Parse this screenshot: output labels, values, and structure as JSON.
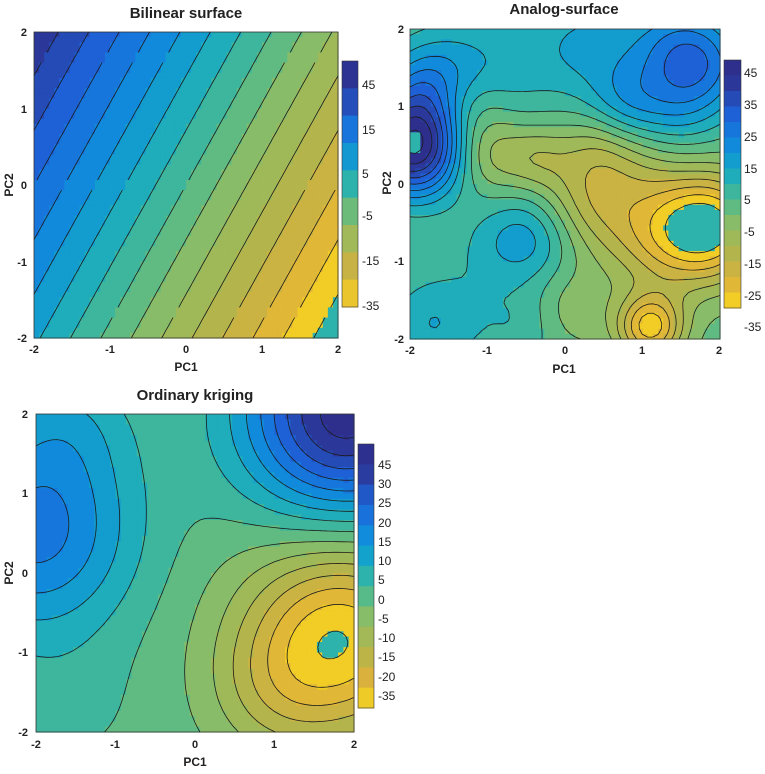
{
  "chart_data": [
    {
      "type": "heatmap",
      "plot_style": "filled contour",
      "title": "Bilinear surface",
      "xlabel": "PC1",
      "ylabel": "PC2",
      "xlim": [
        -2,
        2
      ],
      "ylim": [
        -2,
        2
      ],
      "xticks": [
        "-2",
        "-1",
        "0",
        "1",
        "2"
      ],
      "yticks": [
        "-2",
        "-1",
        "0",
        "1",
        "2"
      ],
      "colorbar_labels": [
        "45",
        "15",
        "5",
        "-5",
        "-15",
        "-35"
      ],
      "colorbar_levels": 9,
      "colorbar_colors": [
        "#f9d81e",
        "#dcb13c",
        "#b2b54d",
        "#8fbc64",
        "#48ba92",
        "#14a9c6",
        "#1187de",
        "#1e62d8",
        "#2a3b9e",
        "#302a87"
      ],
      "model": {
        "form": "bilinear",
        "params": [
          0,
          -12.5,
          7,
          0
        ],
        "range": [
          -35,
          45
        ],
        "colormap": "parula"
      },
      "contour_levels": [
        -35,
        -30,
        -25,
        -20,
        -15,
        -10,
        -5,
        0,
        5,
        10,
        15,
        20,
        25,
        30,
        35,
        40,
        45
      ]
    },
    {
      "type": "heatmap",
      "plot_style": "filled contour",
      "title": "Analog-surface",
      "xlabel": "PC1",
      "ylabel": "PC2",
      "xlim": [
        -2,
        2
      ],
      "ylim": [
        -2,
        2
      ],
      "xticks": [
        "-2",
        "-1",
        "0",
        "1",
        "2"
      ],
      "yticks": [
        "-2",
        "-1",
        "0",
        "1",
        "2"
      ],
      "colorbar_labels": [
        "45",
        "35",
        "25",
        "15",
        "5",
        "-5",
        "-15",
        "-25",
        "-35"
      ],
      "colorbar_levels": 16,
      "colorbar_colors": [
        "#f9d81e",
        "#dcb13c",
        "#b2b54d",
        "#8fbc64",
        "#48ba92",
        "#14a9c6",
        "#1187de",
        "#1e62d8",
        "#2a3b9e",
        "#302a87"
      ],
      "model": {
        "form": "gaussian-blobs",
        "base": -2,
        "range": [
          -35,
          45
        ],
        "colormap": "parula",
        "blobs": [
          [
            -1.95,
            0.45,
            44,
            0.45
          ],
          [
            -1.75,
            1.2,
            20,
            0.45
          ],
          [
            -1.7,
            -1.8,
            12,
            0.45
          ],
          [
            -1.0,
            1.5,
            10,
            0.6
          ],
          [
            -0.5,
            -0.7,
            14,
            0.4
          ],
          [
            0.3,
            1.8,
            12,
            0.5
          ],
          [
            0.75,
            1.05,
            10,
            0.35
          ],
          [
            1.4,
            1.0,
            12,
            0.45
          ],
          [
            1.4,
            1.8,
            14,
            0.45
          ],
          [
            1.85,
            1.55,
            16,
            0.45
          ],
          [
            1.1,
            -0.7,
            -14,
            0.5
          ],
          [
            1.85,
            -0.55,
            -35,
            0.5
          ],
          [
            1.1,
            -1.85,
            -30,
            0.3
          ],
          [
            0.35,
            -0.2,
            -14,
            0.45
          ],
          [
            -1.0,
            0.4,
            -12,
            0.35
          ],
          [
            -1.3,
            1.0,
            -12,
            0.35
          ],
          [
            -0.35,
            0.35,
            -10,
            0.3
          ],
          [
            0.4,
            0.45,
            -8,
            0.35
          ],
          [
            1.0,
            0.25,
            -6,
            0.4
          ],
          [
            0.1,
            -1.6,
            -6,
            0.35
          ],
          [
            -0.6,
            -1.8,
            6,
            0.35
          ],
          [
            -1.1,
            -0.9,
            4,
            0.4
          ]
        ]
      },
      "contour_levels": [
        -35,
        -30,
        -25,
        -20,
        -15,
        -10,
        -5,
        0,
        5,
        10,
        15,
        20,
        25,
        30,
        35,
        40,
        45
      ]
    },
    {
      "type": "heatmap",
      "plot_style": "filled contour",
      "title": "Ordinary kriging",
      "xlabel": "PC1",
      "ylabel": "PC2",
      "xlim": [
        -2,
        2
      ],
      "ylim": [
        -2,
        2
      ],
      "xticks": [
        "-2",
        "-1",
        "0",
        "1",
        "2"
      ],
      "yticks": [
        "-2",
        "-1",
        "0",
        "1",
        "2"
      ],
      "colorbar_labels": [
        "45",
        "30",
        "25",
        "20",
        "15",
        "10",
        "5",
        "0",
        "-5",
        "-10",
        "-15",
        "-20",
        "-35"
      ],
      "colorbar_levels": 13,
      "colorbar_colors": [
        "#f9d81e",
        "#dcb13c",
        "#b2b54d",
        "#8fbc64",
        "#48ba92",
        "#14a9c6",
        "#1187de",
        "#1e62d8",
        "#2a3b9e",
        "#302a87"
      ],
      "model": {
        "form": "gaussian-blobs",
        "base": -2,
        "range": [
          -35,
          45
        ],
        "colormap": "parula",
        "blobs": [
          [
            -2.0,
            0.5,
            24,
            0.9
          ],
          [
            -1.6,
            1.9,
            8,
            0.6
          ],
          [
            1.9,
            2.0,
            45,
            0.9
          ],
          [
            1.85,
            -0.8,
            -32,
            0.85
          ],
          [
            1.0,
            -1.5,
            -8,
            0.6
          ],
          [
            -1.6,
            -1.6,
            3,
            0.6
          ],
          [
            0.0,
            0.0,
            -1,
            1.0
          ]
        ]
      },
      "contour_levels": [
        -35,
        -30,
        -25,
        -20,
        -15,
        -10,
        -5,
        0,
        5,
        10,
        15,
        20,
        25,
        30,
        35,
        40,
        45
      ]
    }
  ]
}
